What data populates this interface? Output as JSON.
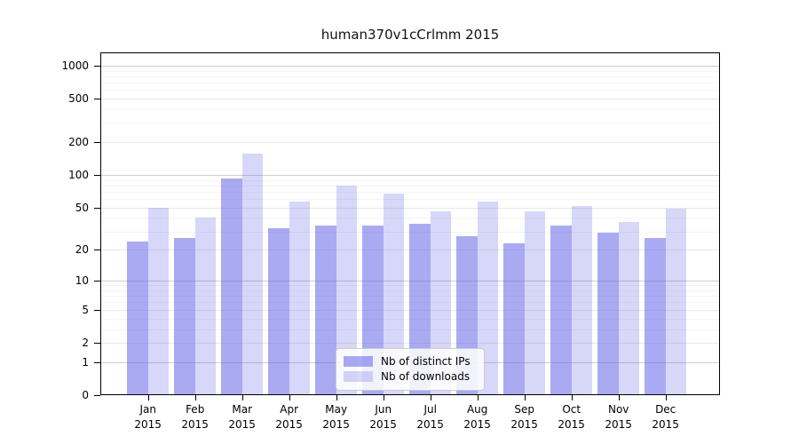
{
  "chart_data": {
    "type": "bar",
    "title": "human370v1cCrlmm 2015",
    "categories": [
      "Jan 2015",
      "Feb 2015",
      "Mar 2015",
      "Apr 2015",
      "May 2015",
      "Jun 2015",
      "Jul 2015",
      "Aug 2015",
      "Sep 2015",
      "Oct 2015",
      "Nov 2015",
      "Dec 2015"
    ],
    "series": [
      {
        "name": "Nb of distinct IPs",
        "color": "rgba(85,85,230,0.50)",
        "values": [
          24,
          26,
          92,
          32,
          34,
          34,
          35,
          27,
          23,
          34,
          29,
          26
        ]
      },
      {
        "name": "Nb of downloads",
        "color": "rgba(85,85,230,0.235)",
        "values": [
          50,
          40,
          158,
          57,
          80,
          67,
          46,
          57,
          46,
          52,
          37,
          49
        ]
      }
    ],
    "yscale": "log1p",
    "ylim": [
      0,
      1330
    ],
    "yticks": [
      1000,
      500,
      200,
      100,
      50,
      20,
      10,
      5,
      2,
      1,
      0
    ],
    "minor_yticks": [
      3,
      4,
      6,
      7,
      8,
      9,
      30,
      40,
      60,
      70,
      80,
      90,
      300,
      400,
      600,
      700,
      800,
      900
    ],
    "xlabel": "",
    "ylabel": "",
    "grid": true,
    "legend_position": "lower center",
    "colors": {
      "decade_grid": "#cfcfcf",
      "major_grid": "#e8e8e8",
      "minor_grid": "#f4f4f4",
      "spine": "#000000",
      "text": "#000000"
    }
  }
}
